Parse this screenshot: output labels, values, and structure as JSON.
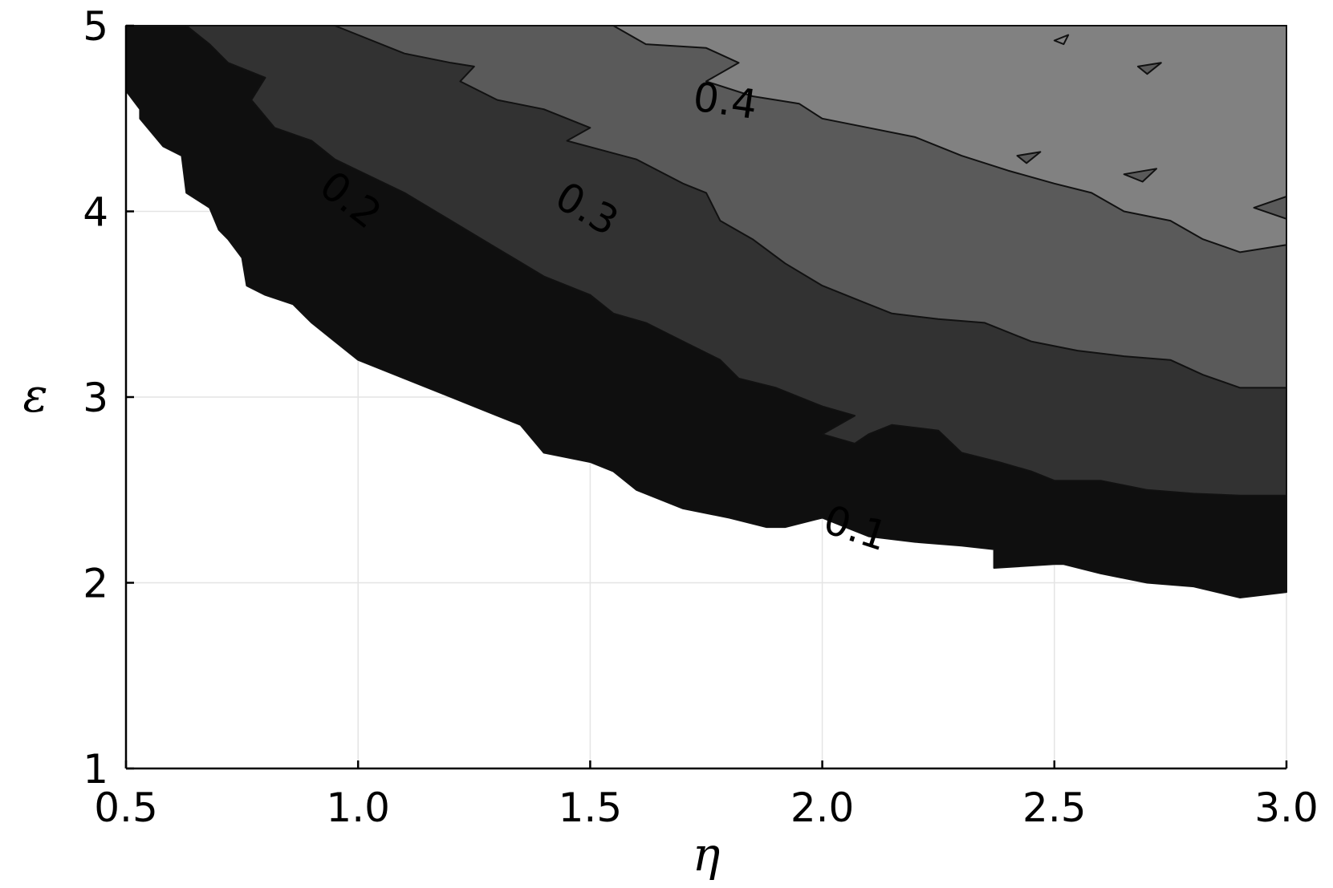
{
  "chart_data": {
    "type": "contour",
    "xlabel": "η",
    "ylabel": "ε",
    "xlim": [
      0.5,
      3.0
    ],
    "ylim": [
      1,
      5
    ],
    "x_ticks": [
      "0.5",
      "1.0",
      "1.5",
      "2.0",
      "2.5",
      "3.0"
    ],
    "y_ticks": [
      "1",
      "2",
      "3",
      "4",
      "5"
    ],
    "grid": true,
    "colormap": "grayscale",
    "levels": [
      {
        "level": "0.1",
        "fill": "#0f0f0f",
        "boundary": [
          [
            0.5,
            4.65
          ],
          [
            0.53,
            4.55
          ],
          [
            0.53,
            4.5
          ],
          [
            0.58,
            4.35
          ],
          [
            0.62,
            4.3
          ],
          [
            0.63,
            4.1
          ],
          [
            0.68,
            4.02
          ],
          [
            0.7,
            3.9
          ],
          [
            0.72,
            3.85
          ],
          [
            0.75,
            3.75
          ],
          [
            0.76,
            3.6
          ],
          [
            0.8,
            3.55
          ],
          [
            0.86,
            3.5
          ],
          [
            0.9,
            3.4
          ],
          [
            0.95,
            3.3
          ],
          [
            1.0,
            3.2
          ],
          [
            1.1,
            3.1
          ],
          [
            1.2,
            3.0
          ],
          [
            1.3,
            2.9
          ],
          [
            1.35,
            2.85
          ],
          [
            1.4,
            2.7
          ],
          [
            1.5,
            2.65
          ],
          [
            1.55,
            2.6
          ],
          [
            1.6,
            2.5
          ],
          [
            1.7,
            2.4
          ],
          [
            1.8,
            2.35
          ],
          [
            1.88,
            2.3
          ],
          [
            1.92,
            2.3
          ],
          [
            2.0,
            2.35
          ],
          [
            2.05,
            2.3
          ],
          [
            2.1,
            2.25
          ],
          [
            2.2,
            2.22
          ],
          [
            2.3,
            2.2
          ],
          [
            2.37,
            2.18
          ],
          [
            2.37,
            2.08
          ],
          [
            2.5,
            2.1
          ],
          [
            2.52,
            2.1
          ],
          [
            2.6,
            2.05
          ],
          [
            2.7,
            2.0
          ],
          [
            2.8,
            1.98
          ],
          [
            2.9,
            1.92
          ],
          [
            3.0,
            1.95
          ]
        ]
      },
      {
        "level": "0.2",
        "fill": "#323232",
        "boundary": [
          [
            0.63,
            5.0
          ],
          [
            0.68,
            4.9
          ],
          [
            0.72,
            4.8
          ],
          [
            0.8,
            4.72
          ],
          [
            0.77,
            4.6
          ],
          [
            0.82,
            4.45
          ],
          [
            0.9,
            4.38
          ],
          [
            0.95,
            4.28
          ],
          [
            1.0,
            4.22
          ],
          [
            1.1,
            4.1
          ],
          [
            1.2,
            3.95
          ],
          [
            1.3,
            3.8
          ],
          [
            1.4,
            3.65
          ],
          [
            1.5,
            3.55
          ],
          [
            1.55,
            3.45
          ],
          [
            1.62,
            3.4
          ],
          [
            1.7,
            3.3
          ],
          [
            1.78,
            3.2
          ],
          [
            1.82,
            3.1
          ],
          [
            1.9,
            3.05
          ],
          [
            2.0,
            2.95
          ],
          [
            2.07,
            2.9
          ],
          [
            2.0,
            2.8
          ],
          [
            2.07,
            2.75
          ],
          [
            2.1,
            2.8
          ],
          [
            2.15,
            2.85
          ],
          [
            2.25,
            2.82
          ],
          [
            2.3,
            2.7
          ],
          [
            2.38,
            2.65
          ],
          [
            2.45,
            2.6
          ],
          [
            2.5,
            2.55
          ],
          [
            2.6,
            2.55
          ],
          [
            2.7,
            2.5
          ],
          [
            2.8,
            2.48
          ],
          [
            2.9,
            2.47
          ],
          [
            3.0,
            2.47
          ]
        ]
      },
      {
        "level": "0.3",
        "fill": "#5a5a5a",
        "boundary": [
          [
            0.95,
            5.0
          ],
          [
            1.1,
            4.85
          ],
          [
            1.2,
            4.8
          ],
          [
            1.25,
            4.78
          ],
          [
            1.22,
            4.7
          ],
          [
            1.3,
            4.6
          ],
          [
            1.4,
            4.55
          ],
          [
            1.5,
            4.45
          ],
          [
            1.45,
            4.38
          ],
          [
            1.6,
            4.28
          ],
          [
            1.7,
            4.15
          ],
          [
            1.75,
            4.1
          ],
          [
            1.78,
            3.95
          ],
          [
            1.85,
            3.85
          ],
          [
            1.92,
            3.72
          ],
          [
            2.0,
            3.6
          ],
          [
            2.1,
            3.5
          ],
          [
            2.15,
            3.45
          ],
          [
            2.25,
            3.42
          ],
          [
            2.35,
            3.4
          ],
          [
            2.45,
            3.3
          ],
          [
            2.55,
            3.25
          ],
          [
            2.65,
            3.22
          ],
          [
            2.75,
            3.2
          ],
          [
            2.82,
            3.12
          ],
          [
            2.9,
            3.05
          ],
          [
            3.0,
            3.05
          ]
        ]
      },
      {
        "level": "0.4",
        "fill": "#818181",
        "boundary": [
          [
            1.55,
            5.0
          ],
          [
            1.62,
            4.9
          ],
          [
            1.75,
            4.88
          ],
          [
            1.82,
            4.8
          ],
          [
            1.75,
            4.7
          ],
          [
            1.85,
            4.62
          ],
          [
            1.95,
            4.58
          ],
          [
            2.0,
            4.5
          ],
          [
            2.1,
            4.45
          ],
          [
            2.2,
            4.4
          ],
          [
            2.3,
            4.3
          ],
          [
            2.4,
            4.22
          ],
          [
            2.5,
            4.15
          ],
          [
            2.58,
            4.1
          ],
          [
            2.65,
            4.0
          ],
          [
            2.75,
            3.95
          ],
          [
            2.82,
            3.85
          ],
          [
            2.9,
            3.78
          ],
          [
            3.0,
            3.82
          ]
        ]
      }
    ],
    "islands": [
      {
        "points": [
          [
            2.5,
            4.92
          ],
          [
            2.53,
            4.95
          ],
          [
            2.52,
            4.9
          ]
        ],
        "fill": "#818181"
      },
      {
        "points": [
          [
            2.68,
            4.78
          ],
          [
            2.73,
            4.8
          ],
          [
            2.7,
            4.74
          ]
        ],
        "fill": "#5a5a5a"
      },
      {
        "points": [
          [
            2.42,
            4.3
          ],
          [
            2.47,
            4.32
          ],
          [
            2.44,
            4.26
          ]
        ],
        "fill": "#5a5a5a"
      },
      {
        "points": [
          [
            2.65,
            4.2
          ],
          [
            2.72,
            4.23
          ],
          [
            2.69,
            4.16
          ]
        ],
        "fill": "#5a5a5a"
      },
      {
        "points": [
          [
            2.93,
            4.02
          ],
          [
            3.0,
            4.08
          ],
          [
            3.0,
            3.96
          ]
        ],
        "fill": "#5a5a5a"
      }
    ],
    "contour_labels": [
      {
        "text": "0.1",
        "x": 2.07,
        "y": 2.28,
        "angle": 18
      },
      {
        "text": "0.2",
        "x": 0.98,
        "y": 4.05,
        "angle": 38
      },
      {
        "text": "0.3",
        "x": 1.49,
        "y": 4.0,
        "angle": 30
      },
      {
        "text": "0.4",
        "x": 1.79,
        "y": 4.58,
        "angle": 8
      }
    ]
  }
}
